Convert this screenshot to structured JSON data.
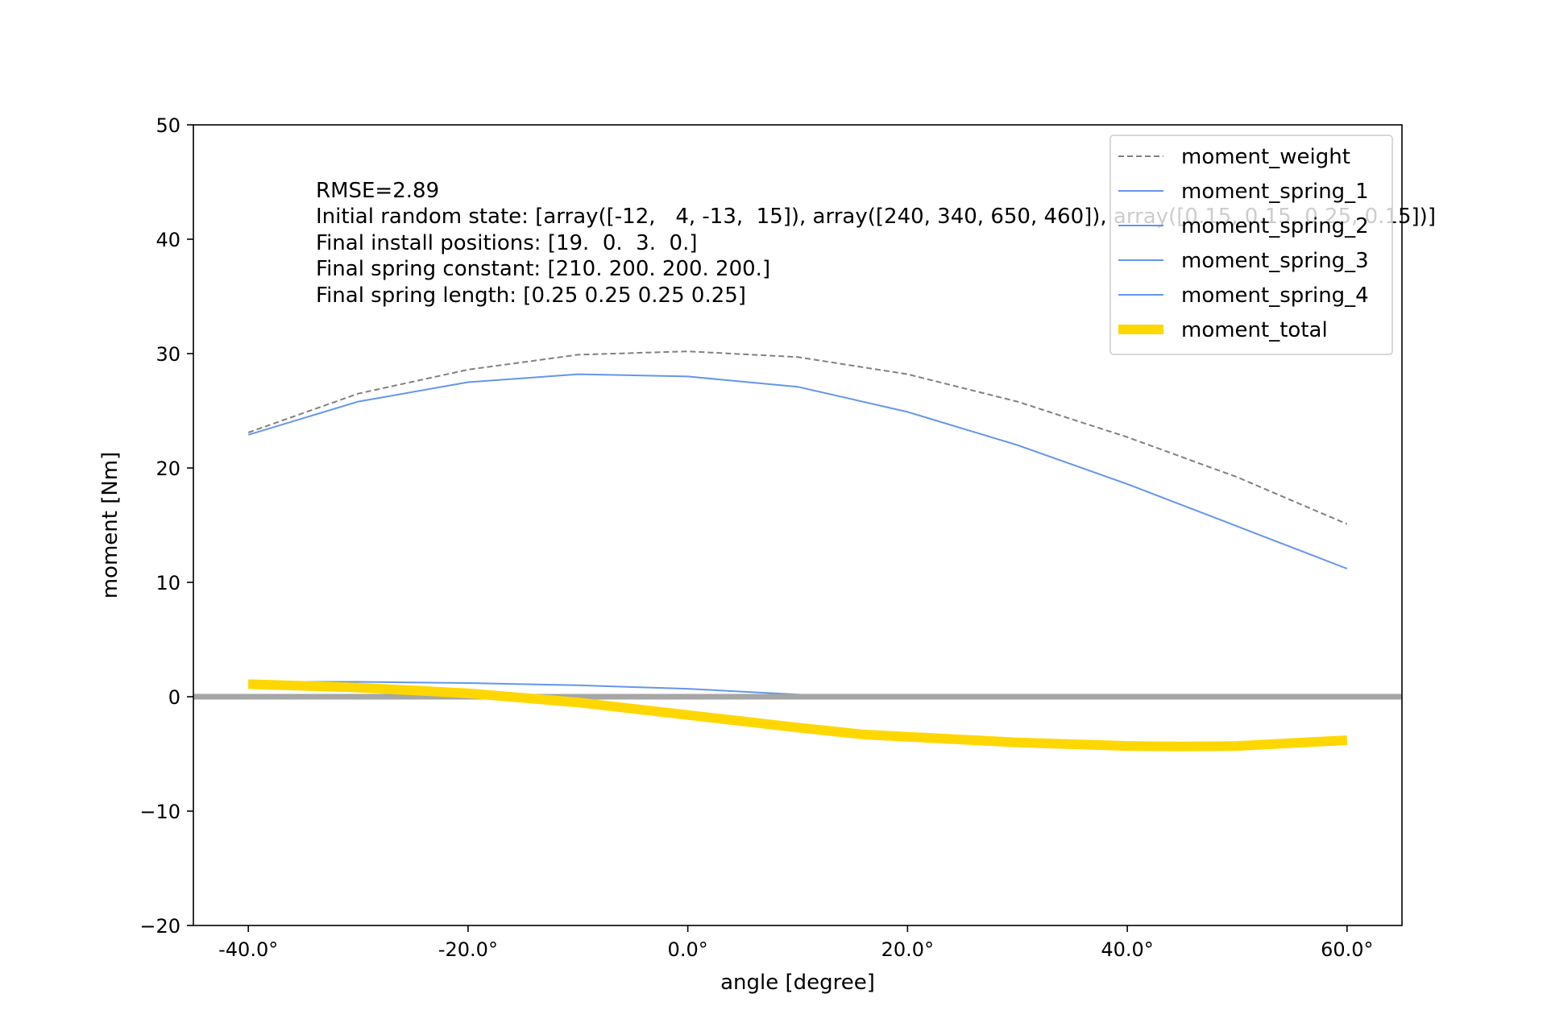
{
  "chart_data": {
    "type": "line",
    "xlabel": "angle [degree]",
    "ylabel": "moment [Nm]",
    "xlim": [
      -45,
      65
    ],
    "ylim": [
      -20,
      50
    ],
    "xticks": [
      -40,
      -20,
      0,
      20,
      40,
      60
    ],
    "xtick_labels": [
      "-40.0°",
      "-20.0°",
      "0.0°",
      "20.0°",
      "40.0°",
      "60.0°"
    ],
    "yticks": [
      -20,
      -10,
      0,
      10,
      20,
      30,
      40,
      50
    ],
    "ytick_labels": [
      "−20",
      "−10",
      "0",
      "10",
      "20",
      "30",
      "40",
      "50"
    ],
    "grid": false,
    "legend_position": "top-right",
    "annotation": [
      "RMSE=2.89",
      "Initial random state: [array([-12,   4, -13,  15]), array([240, 340, 650, 460]), array([0.15, 0.15, 0.25, 0.15])]",
      "Final install positions: [19.  0.  3.  0.]",
      "Final spring constant: [210. 200. 200. 200.]",
      "Final spring length: [0.25 0.25 0.25 0.25]"
    ],
    "reference_line": {
      "y": 0,
      "color": "#a6a6a6"
    },
    "series": [
      {
        "name": "moment_weight",
        "color": "#808080",
        "style": "dashed",
        "x": [
          -40,
          -30,
          -20,
          -10,
          0,
          10,
          20,
          30,
          40,
          50,
          60
        ],
        "y": [
          23.1,
          26.5,
          28.6,
          29.9,
          30.2,
          29.7,
          28.2,
          25.8,
          22.7,
          19.2,
          15.1
        ]
      },
      {
        "name": "moment_spring_1",
        "color": "#6495ed",
        "style": "solid",
        "x": [
          -40,
          -30,
          -20,
          -10,
          0,
          10,
          20,
          30,
          40,
          50,
          60
        ],
        "y": [
          22.9,
          25.8,
          27.5,
          28.2,
          28.0,
          27.1,
          24.9,
          22.0,
          18.6,
          14.9,
          11.2
        ]
      },
      {
        "name": "moment_spring_2",
        "color": "#6495ed",
        "style": "solid",
        "x": [
          -40,
          -30,
          -20,
          -10,
          0,
          10,
          12,
          20,
          40,
          60
        ],
        "y": [
          1.3,
          1.3,
          1.2,
          1.0,
          0.7,
          0.2,
          0.0,
          0.0,
          0.0,
          0.0
        ]
      },
      {
        "name": "moment_spring_3",
        "color": "#6495ed",
        "style": "solid",
        "x": [
          -40,
          60
        ],
        "y": [
          0,
          0
        ]
      },
      {
        "name": "moment_spring_4",
        "color": "#6495ed",
        "style": "solid",
        "x": [
          -40,
          60
        ],
        "y": [
          0,
          0
        ]
      },
      {
        "name": "moment_total",
        "color": "#ffd700",
        "style": "thick",
        "x": [
          -40,
          -30,
          -20,
          -15,
          -10,
          0,
          10,
          16,
          20,
          30,
          40,
          45,
          50,
          60
        ],
        "y": [
          1.1,
          0.8,
          0.3,
          -0.1,
          -0.5,
          -1.6,
          -2.7,
          -3.3,
          -3.5,
          -4.0,
          -4.3,
          -4.35,
          -4.3,
          -3.8
        ]
      }
    ]
  }
}
